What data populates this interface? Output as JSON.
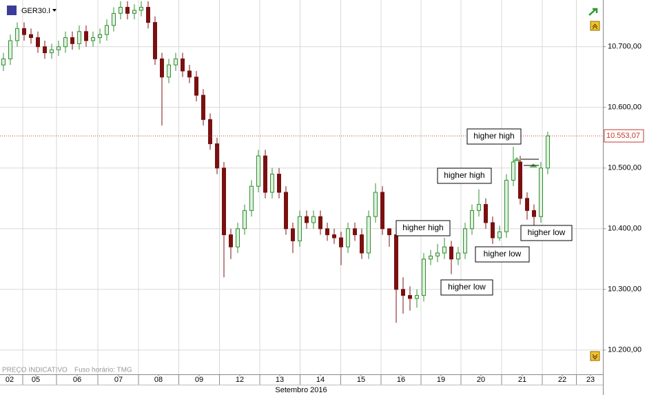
{
  "header": {
    "symbol": "GER30.I",
    "footer_note": "PREÇO INDICATIVO",
    "timezone": "Fuso horário: TMG"
  },
  "chart_data": {
    "type": "candlestick",
    "xlabel": "Setembro 2016",
    "open": [
      10670,
      10680,
      10710,
      10730,
      10720,
      10715,
      10700,
      10690,
      10695,
      10700,
      10715,
      10705,
      10725,
      10710,
      10715,
      10720,
      10735,
      10755,
      10765,
      10755,
      10760,
      10765,
      10740,
      10680,
      10650,
      10670,
      10680,
      10660,
      10650,
      10620,
      10580,
      10540,
      10500,
      10390,
      10370,
      10400,
      10430,
      10470,
      10520,
      10460,
      10490,
      10460,
      10400,
      10380,
      10420,
      10410,
      10420,
      10400,
      10390,
      10385,
      10370,
      10400,
      10390,
      10360,
      10420,
      10460,
      10400,
      10390,
      10300,
      10290,
      10285,
      10290,
      10350,
      10355,
      10360,
      10370,
      10350,
      10360,
      10400,
      10430,
      10440,
      10410,
      10385,
      10395,
      10480,
      10510,
      10450,
      10430,
      10420,
      10500
    ],
    "high": [
      10690,
      10720,
      10740,
      10740,
      10730,
      10725,
      10710,
      10705,
      10710,
      10725,
      10725,
      10735,
      10735,
      10725,
      10730,
      10745,
      10765,
      10775,
      10775,
      10770,
      10775,
      10775,
      10750,
      10690,
      10680,
      10690,
      10690,
      10670,
      10660,
      10630,
      10590,
      10550,
      10510,
      10400,
      10410,
      10440,
      10480,
      10530,
      10530,
      10500,
      10500,
      10470,
      10410,
      10430,
      10430,
      10430,
      10430,
      10410,
      10400,
      10395,
      10410,
      10410,
      10400,
      10430,
      10475,
      10470,
      10400,
      10400,
      10320,
      10305,
      10300,
      10360,
      10365,
      10375,
      10385,
      10380,
      10370,
      10410,
      10440,
      10465,
      10450,
      10420,
      10405,
      10490,
      10535,
      10520,
      10460,
      10440,
      10510,
      10560
    ],
    "low": [
      10660,
      10670,
      10700,
      10710,
      10705,
      10690,
      10680,
      10680,
      10685,
      10690,
      10695,
      10695,
      10700,
      10700,
      10705,
      10710,
      10725,
      10745,
      10745,
      10745,
      10750,
      10730,
      10670,
      10570,
      10640,
      10660,
      10650,
      10640,
      10610,
      10570,
      10530,
      10490,
      10320,
      10350,
      10360,
      10390,
      10420,
      10460,
      10450,
      10450,
      10450,
      10390,
      10360,
      10370,
      10400,
      10400,
      10390,
      10380,
      10375,
      10340,
      10360,
      10380,
      10350,
      10350,
      10410,
      10390,
      10370,
      10245,
      10260,
      10265,
      10270,
      10280,
      10340,
      10345,
      10350,
      10325,
      10340,
      10350,
      10390,
      10420,
      10400,
      10375,
      10380,
      10385,
      10470,
      10440,
      10415,
      10405,
      10410,
      10490
    ],
    "close": [
      10680,
      10710,
      10730,
      10720,
      10715,
      10700,
      10690,
      10695,
      10700,
      10715,
      10705,
      10725,
      10710,
      10715,
      10720,
      10735,
      10755,
      10765,
      10755,
      10760,
      10765,
      10740,
      10680,
      10650,
      10670,
      10680,
      10660,
      10650,
      10620,
      10580,
      10540,
      10500,
      10390,
      10370,
      10400,
      10430,
      10470,
      10520,
      10460,
      10490,
      10460,
      10400,
      10380,
      10420,
      10410,
      10420,
      10400,
      10390,
      10385,
      10370,
      10400,
      10390,
      10360,
      10420,
      10460,
      10400,
      10390,
      10300,
      10290,
      10285,
      10290,
      10350,
      10355,
      10360,
      10370,
      10350,
      10360,
      10400,
      10430,
      10440,
      10410,
      10385,
      10395,
      10480,
      10510,
      10450,
      10430,
      10420,
      10500,
      10553.07
    ],
    "up_color": "#2f8f2f",
    "down_color": "#7a1010",
    "ylim": [
      10160,
      10777
    ],
    "yticks": [
      {
        "value": 10200,
        "label": "10.200,00"
      },
      {
        "value": 10300,
        "label": "10.300,00"
      },
      {
        "value": 10400,
        "label": "10.400,00"
      },
      {
        "value": 10500,
        "label": "10.500,00"
      },
      {
        "value": 10600,
        "label": "10.600,00"
      },
      {
        "value": 10700,
        "label": "10.700,00"
      }
    ],
    "xlim": [
      -0.5,
      87
    ],
    "xticks": [
      {
        "value": 0.9,
        "label": "02"
      },
      {
        "value": 4.7,
        "label": "05"
      },
      {
        "value": 10.7,
        "label": "06"
      },
      {
        "value": 16.7,
        "label": "07"
      },
      {
        "value": 22.5,
        "label": "08"
      },
      {
        "value": 28.4,
        "label": "09"
      },
      {
        "value": 34.3,
        "label": "12"
      },
      {
        "value": 40.1,
        "label": "13"
      },
      {
        "value": 46,
        "label": "14"
      },
      {
        "value": 51.9,
        "label": "15"
      },
      {
        "value": 57.7,
        "label": "16"
      },
      {
        "value": 63.5,
        "label": "19"
      },
      {
        "value": 69.3,
        "label": "20"
      },
      {
        "value": 75.3,
        "label": "21"
      },
      {
        "value": 81.1,
        "label": "22"
      },
      {
        "value": 85.2,
        "label": "23"
      }
    ],
    "price_line": {
      "value": 10553.07,
      "label": "10.553,07"
    },
    "grid": true,
    "annotations": [
      "higher high",
      "higher high",
      "higher high",
      "higher low",
      "higher low",
      "higher low"
    ]
  }
}
